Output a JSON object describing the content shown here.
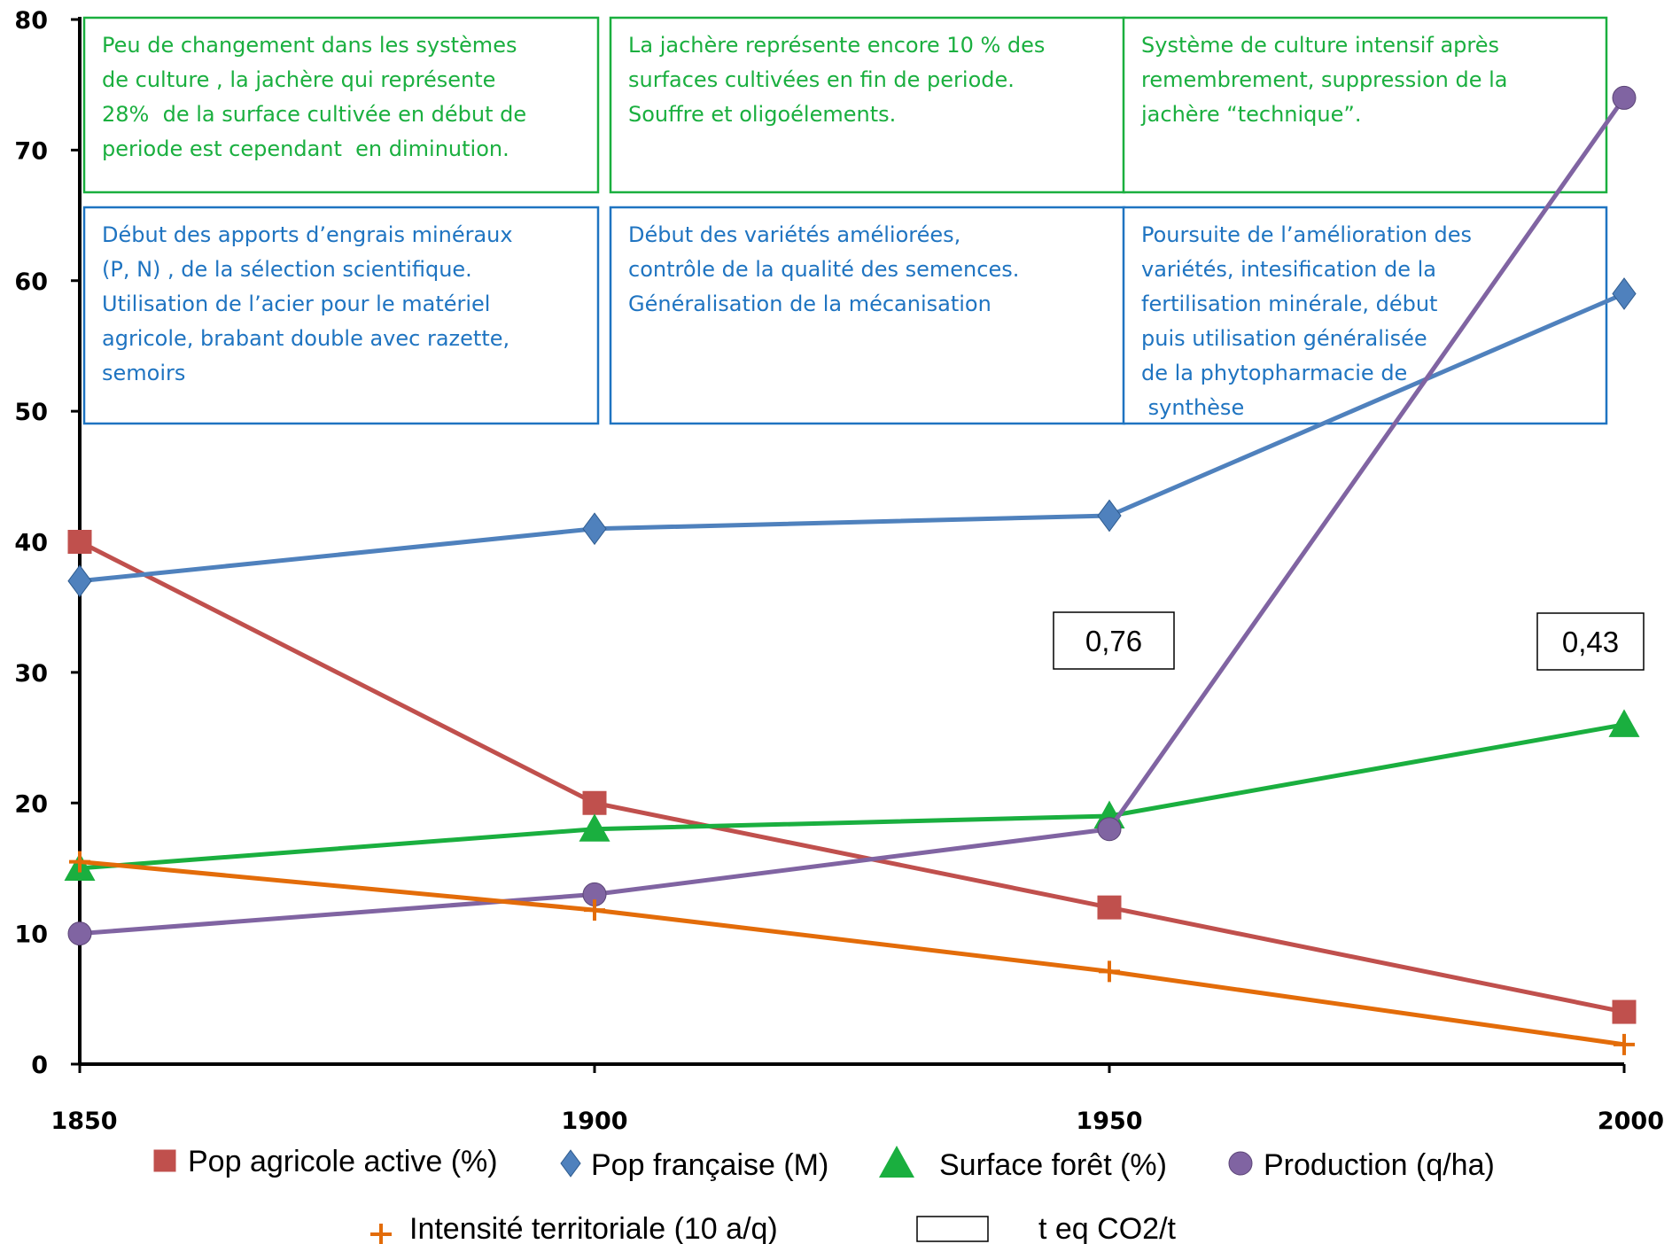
{
  "chart_data": {
    "type": "line",
    "x": [
      1850,
      1900,
      1950,
      2000
    ],
    "xlim": [
      1850,
      2000
    ],
    "ylim": [
      0,
      80
    ],
    "x_ticks": [
      "1850",
      "1900",
      "1950",
      "2000"
    ],
    "y_ticks": [
      "0",
      "10",
      "20",
      "30",
      "40",
      "50",
      "60",
      "70",
      "80"
    ],
    "grid": false,
    "legend_position": "bottom",
    "series": [
      {
        "key": "pop_agri",
        "name": "Pop agricole active (%)",
        "color": "#c0504d",
        "marker": "square",
        "values": [
          40,
          20,
          12,
          4
        ]
      },
      {
        "key": "pop_fr",
        "name": "Pop française (M)",
        "color": "#4f81bd",
        "marker": "diamond",
        "values": [
          37,
          41,
          42,
          59
        ]
      },
      {
        "key": "foret",
        "name": "Surface forêt (%)",
        "color": "#1aaf3f",
        "marker": "triangle",
        "values": [
          15,
          18,
          19,
          26
        ]
      },
      {
        "key": "production",
        "name": "Production (q/ha)",
        "color": "#8064a2",
        "marker": "circle",
        "values": [
          10,
          13,
          18,
          74
        ]
      },
      {
        "key": "intensite",
        "name": "Intensité territoriale (10 a/q)",
        "color": "#e36c09",
        "marker": "plus",
        "values": [
          15.5,
          11.8,
          7.1,
          1.5
        ]
      }
    ],
    "extra_legend": {
      "name": "t eq CO2/t",
      "marker": "box"
    },
    "value_boxes": [
      {
        "x": 1950,
        "label": "0,76"
      },
      {
        "x": 2000,
        "label": "0,43"
      }
    ],
    "annotations": {
      "green": [
        [
          "Peu de changement dans les systèmes",
          "de culture , la jachère qui représente",
          "28%  de la surface cultivée en début de",
          "periode est cependant  en diminution."
        ],
        [
          "La jachère représente encore 10 % des",
          "surfaces cultivées en fin de periode.",
          "Souffre et oligoélements."
        ],
        [
          "Système de culture intensif après",
          "remembrement, suppression de la",
          "jachère “technique”."
        ]
      ],
      "blue": [
        [
          "Début des apports d’engrais minéraux",
          "(P, N) , de la sélection scientifique.",
          "Utilisation de l’acier pour le matériel",
          "agricole, brabant double avec razette,",
          "semoirs"
        ],
        [
          "Début des variétés améliorées,",
          "contrôle de la qualité des semences.",
          "Généralisation de la mécanisation"
        ],
        [
          "Poursuite de l’amélioration des",
          "variétés, intesification de la",
          "fertilisation minérale, début",
          "puis utilisation généralisée",
          "de la phytopharmacie de",
          " synthèse"
        ]
      ],
      "green_color": "#1aaf3f",
      "blue_color": "#1f74c1"
    }
  }
}
